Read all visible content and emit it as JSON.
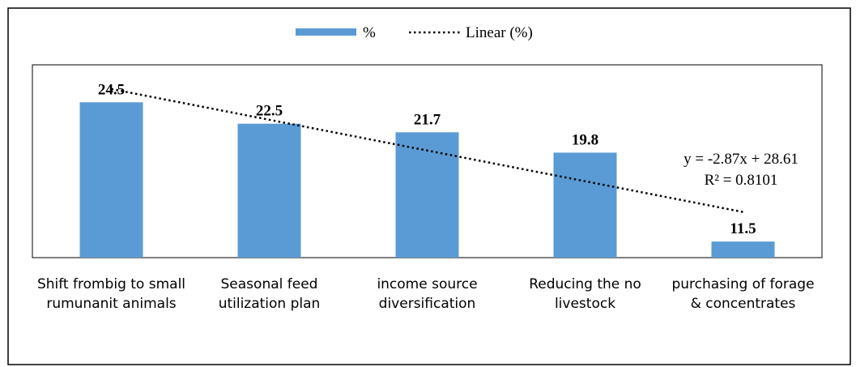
{
  "chart_data": {
    "type": "bar",
    "series": [
      {
        "name": "%",
        "color": "#5b9bd5",
        "values": [
          24.5,
          22.5,
          21.7,
          19.8,
          11.5
        ]
      }
    ],
    "categories": [
      "Shift frombig to small rumunanit animals",
      "Seasonal feed utilization plan",
      "income source diversification",
      "Reducing the no livestock",
      "purchasing of forage & concentrates"
    ],
    "trendline": {
      "name": "Linear (%)",
      "slope": -2.87,
      "intercept": 28.61,
      "color": "#000000"
    },
    "annotations": [
      "y = -2.87x + 28.61",
      "R² = 0.8101"
    ],
    "ylim": [
      10,
      28
    ],
    "legend": "top"
  }
}
